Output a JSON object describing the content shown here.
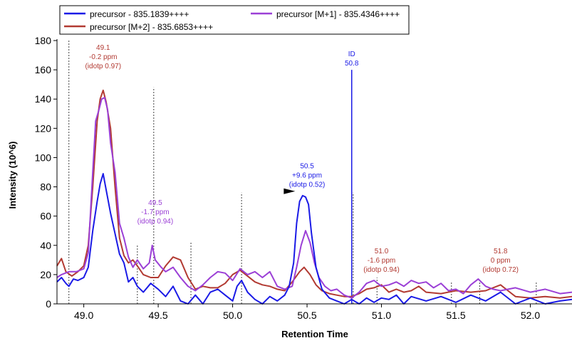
{
  "chart_data": {
    "type": "line",
    "xlabel": "Retention Time",
    "ylabel": "Intensity (10^6)",
    "xlim": [
      48.82,
      52.28
    ],
    "ylim": [
      0,
      180
    ],
    "x_ticks": [
      "49.0",
      "49.5",
      "50.0",
      "50.5",
      "51.0",
      "51.5",
      "52.0"
    ],
    "x_tick_values": [
      49.0,
      49.5,
      50.0,
      50.5,
      51.0,
      51.5,
      52.0
    ],
    "y_ticks": [
      "0",
      "20",
      "40",
      "60",
      "80",
      "100",
      "120",
      "140",
      "160",
      "180"
    ],
    "y_tick_values": [
      0,
      20,
      40,
      60,
      80,
      100,
      120,
      140,
      160,
      180
    ],
    "grid": false,
    "legend_position": "top-left",
    "legend": [
      {
        "label": "precursor - 835.1839++++",
        "color": "#1a1ae6"
      },
      {
        "label": "precursor [M+1] - 835.4346++++",
        "color": "#9b3fd6"
      },
      {
        "label": "precursor [M+2] - 835.6853++++",
        "color": "#b23a32"
      }
    ],
    "series": [
      {
        "name": "precursor [M+2] - 835.6853++++",
        "color": "#b23a32",
        "points": [
          [
            48.82,
            26
          ],
          [
            48.85,
            31
          ],
          [
            48.88,
            22
          ],
          [
            48.92,
            19
          ],
          [
            48.96,
            22
          ],
          [
            49.0,
            26
          ],
          [
            49.03,
            40
          ],
          [
            49.06,
            80
          ],
          [
            49.09,
            125
          ],
          [
            49.11,
            140
          ],
          [
            49.13,
            146
          ],
          [
            49.15,
            138
          ],
          [
            49.18,
            120
          ],
          [
            49.21,
            80
          ],
          [
            49.24,
            45
          ],
          [
            49.27,
            33
          ],
          [
            49.3,
            28
          ],
          [
            49.33,
            30
          ],
          [
            49.36,
            26
          ],
          [
            49.4,
            20
          ],
          [
            49.45,
            18
          ],
          [
            49.5,
            18
          ],
          [
            49.55,
            26
          ],
          [
            49.6,
            32
          ],
          [
            49.65,
            30
          ],
          [
            49.7,
            18
          ],
          [
            49.75,
            10
          ],
          [
            49.8,
            12
          ],
          [
            49.85,
            11
          ],
          [
            49.9,
            11
          ],
          [
            49.95,
            14
          ],
          [
            50.0,
            20
          ],
          [
            50.05,
            23
          ],
          [
            50.1,
            19
          ],
          [
            50.15,
            15
          ],
          [
            50.2,
            13
          ],
          [
            50.25,
            12
          ],
          [
            50.3,
            10
          ],
          [
            50.35,
            9
          ],
          [
            50.4,
            15
          ],
          [
            50.45,
            22
          ],
          [
            50.48,
            25
          ],
          [
            50.52,
            20
          ],
          [
            50.56,
            13
          ],
          [
            50.6,
            9
          ],
          [
            50.65,
            7
          ],
          [
            50.7,
            6
          ],
          [
            50.75,
            5
          ],
          [
            50.8,
            5
          ],
          [
            50.85,
            7
          ],
          [
            50.9,
            10
          ],
          [
            50.95,
            11
          ],
          [
            51.0,
            13
          ],
          [
            51.05,
            8
          ],
          [
            51.1,
            10
          ],
          [
            51.15,
            8
          ],
          [
            51.2,
            9
          ],
          [
            51.25,
            12
          ],
          [
            51.3,
            8
          ],
          [
            51.4,
            7
          ],
          [
            51.5,
            9
          ],
          [
            51.6,
            8
          ],
          [
            51.7,
            9
          ],
          [
            51.8,
            13
          ],
          [
            51.85,
            9
          ],
          [
            51.9,
            5
          ],
          [
            52.0,
            4
          ],
          [
            52.1,
            5
          ],
          [
            52.2,
            4
          ],
          [
            52.28,
            5
          ]
        ]
      },
      {
        "name": "precursor [M+1] - 835.4346++++",
        "color": "#9b3fd6",
        "points": [
          [
            48.82,
            18
          ],
          [
            48.85,
            20
          ],
          [
            48.9,
            22
          ],
          [
            48.95,
            22
          ],
          [
            49.0,
            24
          ],
          [
            49.03,
            35
          ],
          [
            49.06,
            90
          ],
          [
            49.08,
            125
          ],
          [
            49.1,
            132
          ],
          [
            49.12,
            140
          ],
          [
            49.14,
            141
          ],
          [
            49.16,
            133
          ],
          [
            49.18,
            110
          ],
          [
            49.21,
            90
          ],
          [
            49.24,
            55
          ],
          [
            49.27,
            45
          ],
          [
            49.3,
            32
          ],
          [
            49.33,
            25
          ],
          [
            49.36,
            30
          ],
          [
            49.4,
            24
          ],
          [
            49.44,
            28
          ],
          [
            49.46,
            40
          ],
          [
            49.48,
            30
          ],
          [
            49.52,
            25
          ],
          [
            49.55,
            22
          ],
          [
            49.6,
            25
          ],
          [
            49.65,
            18
          ],
          [
            49.7,
            12
          ],
          [
            49.75,
            9
          ],
          [
            49.8,
            13
          ],
          [
            49.85,
            18
          ],
          [
            49.9,
            22
          ],
          [
            49.95,
            21
          ],
          [
            50.0,
            16
          ],
          [
            50.05,
            24
          ],
          [
            50.1,
            20
          ],
          [
            50.15,
            22
          ],
          [
            50.2,
            18
          ],
          [
            50.25,
            22
          ],
          [
            50.3,
            12
          ],
          [
            50.35,
            10
          ],
          [
            50.4,
            12
          ],
          [
            50.43,
            25
          ],
          [
            50.46,
            40
          ],
          [
            50.49,
            50
          ],
          [
            50.52,
            42
          ],
          [
            50.55,
            28
          ],
          [
            50.58,
            18
          ],
          [
            50.62,
            12
          ],
          [
            50.66,
            9
          ],
          [
            50.7,
            10
          ],
          [
            50.75,
            6
          ],
          [
            50.8,
            4
          ],
          [
            50.85,
            8
          ],
          [
            50.9,
            14
          ],
          [
            50.95,
            16
          ],
          [
            51.0,
            12
          ],
          [
            51.05,
            13
          ],
          [
            51.1,
            15
          ],
          [
            51.15,
            12
          ],
          [
            51.2,
            16
          ],
          [
            51.25,
            14
          ],
          [
            51.3,
            15
          ],
          [
            51.35,
            11
          ],
          [
            51.4,
            14
          ],
          [
            51.45,
            9
          ],
          [
            51.5,
            10
          ],
          [
            51.55,
            7
          ],
          [
            51.6,
            13
          ],
          [
            51.65,
            17
          ],
          [
            51.7,
            12
          ],
          [
            51.75,
            10
          ],
          [
            51.8,
            9
          ],
          [
            51.9,
            11
          ],
          [
            52.0,
            8
          ],
          [
            52.1,
            10
          ],
          [
            52.2,
            7
          ],
          [
            52.28,
            8
          ]
        ]
      },
      {
        "name": "precursor - 835.1839++++",
        "color": "#1a1ae6",
        "points": [
          [
            48.82,
            15
          ],
          [
            48.85,
            18
          ],
          [
            48.88,
            14
          ],
          [
            48.9,
            12
          ],
          [
            48.93,
            17
          ],
          [
            48.96,
            16
          ],
          [
            49.0,
            18
          ],
          [
            49.03,
            25
          ],
          [
            49.06,
            50
          ],
          [
            49.09,
            70
          ],
          [
            49.11,
            82
          ],
          [
            49.13,
            89
          ],
          [
            49.15,
            78
          ],
          [
            49.18,
            62
          ],
          [
            49.21,
            48
          ],
          [
            49.24,
            34
          ],
          [
            49.27,
            28
          ],
          [
            49.3,
            15
          ],
          [
            49.33,
            18
          ],
          [
            49.36,
            12
          ],
          [
            49.4,
            8
          ],
          [
            49.45,
            14
          ],
          [
            49.5,
            10
          ],
          [
            49.55,
            5
          ],
          [
            49.6,
            12
          ],
          [
            49.65,
            2
          ],
          [
            49.7,
            0
          ],
          [
            49.75,
            6
          ],
          [
            49.8,
            0
          ],
          [
            49.85,
            8
          ],
          [
            49.9,
            10
          ],
          [
            49.95,
            6
          ],
          [
            50.0,
            2
          ],
          [
            50.03,
            12
          ],
          [
            50.06,
            16
          ],
          [
            50.1,
            8
          ],
          [
            50.15,
            3
          ],
          [
            50.2,
            0
          ],
          [
            50.25,
            5
          ],
          [
            50.3,
            2
          ],
          [
            50.35,
            6
          ],
          [
            50.38,
            12
          ],
          [
            50.41,
            28
          ],
          [
            50.43,
            55
          ],
          [
            50.45,
            70
          ],
          [
            50.47,
            74
          ],
          [
            50.49,
            73
          ],
          [
            50.51,
            68
          ],
          [
            50.53,
            48
          ],
          [
            50.56,
            25
          ],
          [
            50.6,
            10
          ],
          [
            50.65,
            4
          ],
          [
            50.7,
            2
          ],
          [
            50.75,
            0
          ],
          [
            50.8,
            3
          ],
          [
            50.85,
            0
          ],
          [
            50.9,
            4
          ],
          [
            50.95,
            1
          ],
          [
            51.0,
            4
          ],
          [
            51.05,
            3
          ],
          [
            51.1,
            6
          ],
          [
            51.15,
            0
          ],
          [
            51.2,
            5
          ],
          [
            51.3,
            2
          ],
          [
            51.4,
            5
          ],
          [
            51.5,
            1
          ],
          [
            51.6,
            6
          ],
          [
            51.7,
            2
          ],
          [
            51.8,
            8
          ],
          [
            51.9,
            0
          ],
          [
            52.0,
            4
          ],
          [
            52.1,
            0
          ],
          [
            52.2,
            2
          ],
          [
            52.28,
            3
          ]
        ]
      }
    ],
    "annotations": [
      {
        "lines": [
          "49.1",
          "-0.2 ppm",
          "(idotp 0.97)"
        ],
        "x": 49.13,
        "y": 161,
        "color": "#b23a32"
      },
      {
        "lines": [
          "49.5",
          "-1.7 ppm",
          "(idotp 0.94)"
        ],
        "x": 49.48,
        "y": 55,
        "color": "#9b3fd6"
      },
      {
        "lines": [
          "50.5",
          "+9.6 ppm",
          "(idotp 0.52)"
        ],
        "x": 50.5,
        "y": 80,
        "color": "#1a1ae6"
      },
      {
        "lines": [
          "51.0",
          "-1.6 ppm",
          "(idotp 0.94)"
        ],
        "x": 51.0,
        "y": 22,
        "color": "#b23a32"
      },
      {
        "lines": [
          "51.8",
          "0 ppm",
          "(idotp 0.72)"
        ],
        "x": 51.8,
        "y": 22,
        "color": "#b23a32"
      },
      {
        "lines": [
          "ID",
          "50.8"
        ],
        "x": 50.8,
        "y": 163,
        "color": "#1a1ae6"
      }
    ],
    "id_line": {
      "x": 50.8,
      "y": 160,
      "color": "#1a1ae6"
    },
    "peak_bound_lines": [
      {
        "x": 48.9,
        "y": 180
      },
      {
        "x": 49.47,
        "y": 148
      },
      {
        "x": 49.36,
        "y": 40
      },
      {
        "x": 49.72,
        "y": 42
      },
      {
        "x": 50.06,
        "y": 76
      },
      {
        "x": 50.81,
        "y": 76
      },
      {
        "x": 51.47,
        "y": 15
      },
      {
        "x": 52.04,
        "y": 15
      },
      {
        "x": 50.97,
        "y": 18
      },
      {
        "x": 51.66,
        "y": 15
      }
    ],
    "peak_marker": {
      "x": 50.42,
      "y": 77
    }
  }
}
